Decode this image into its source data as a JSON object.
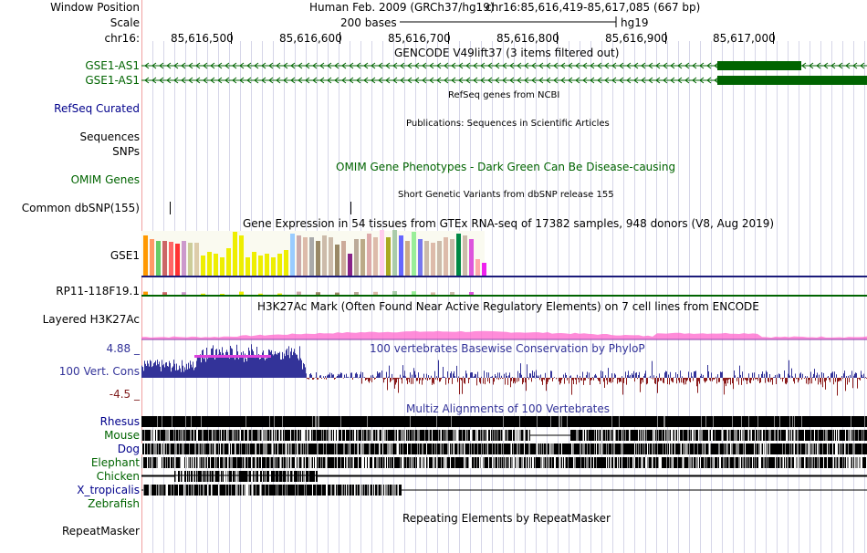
{
  "header": {
    "window_position_label": "Window Position",
    "scale_label": "Scale",
    "chrom_label": "chr16:",
    "assembly_text": "Human Feb. 2009 (GRCh37/hg19)",
    "position_text": "chr16:85,616,419-85,617,085 (667 bp)",
    "scale_text": "200 bases",
    "scale_assembly": "hg19",
    "ruler_ticks": [
      "85,616,500",
      "85,616,600",
      "85,616,700",
      "85,616,800",
      "85,616,900",
      "85,617,000"
    ]
  },
  "tracks": {
    "gencode": {
      "title": "GENCODE V49lift37 (3 items filtered out)",
      "items": [
        "GSE1-AS1",
        "GSE1-AS1"
      ],
      "color": "#006400"
    },
    "refseq": {
      "title": "RefSeq genes from NCBI",
      "label": "RefSeq Curated",
      "color": "#00008b"
    },
    "publications": {
      "title": "Publications: Sequences in Scientific Articles",
      "labels": [
        "Sequences",
        "SNPs"
      ]
    },
    "omim": {
      "title": "OMIM Gene Phenotypes - Dark Green Can Be Disease-causing",
      "label": "OMIM Genes",
      "color": "#006400"
    },
    "dbsnp": {
      "title": "Short Genetic Variants from dbSNP release 155",
      "label": "Common dbSNP(155)"
    },
    "gtex": {
      "title": "Gene Expression in 54 tissues from GTEx RNA-seq of 17382 samples, 948 donors (V8, Aug 2019)",
      "genes": [
        "GSE1",
        "RP11-118F19.1"
      ]
    },
    "h3k27ac": {
      "title": "H3K27Ac Mark (Often Found Near Active Regulatory Elements) on 7 cell lines from ENCODE",
      "label": "Layered H3K27Ac"
    },
    "conservation": {
      "title": "100 vertebrates Basewise Conservation by PhyloP",
      "label": "100 Vert. Cons",
      "max_label": "4.88 _",
      "min_label": "-4.5 _",
      "pos_color": "#333399",
      "neg_color": "#8b1a1a"
    },
    "multiz": {
      "title": "Multiz Alignments of 100 Vertebrates",
      "species": [
        {
          "name": "Rhesus",
          "color": "#00008b"
        },
        {
          "name": "Mouse",
          "color": "#006400"
        },
        {
          "name": "Dog",
          "color": "#00008b"
        },
        {
          "name": "Elephant",
          "color": "#006400"
        },
        {
          "name": "Chicken",
          "color": "#006400"
        },
        {
          "name": "X_tropicalis",
          "color": "#00008b"
        },
        {
          "name": "Zebrafish",
          "color": "#006400"
        }
      ]
    },
    "repeatmasker": {
      "title": "Repeating Elements by RepeatMasker",
      "label": "RepeatMasker"
    }
  },
  "colors": {
    "gencode": "#006400",
    "grid": "#d6d6e8",
    "gtex_line": "#1c1c7a",
    "h3k27ac": "#ff6fcf"
  }
}
